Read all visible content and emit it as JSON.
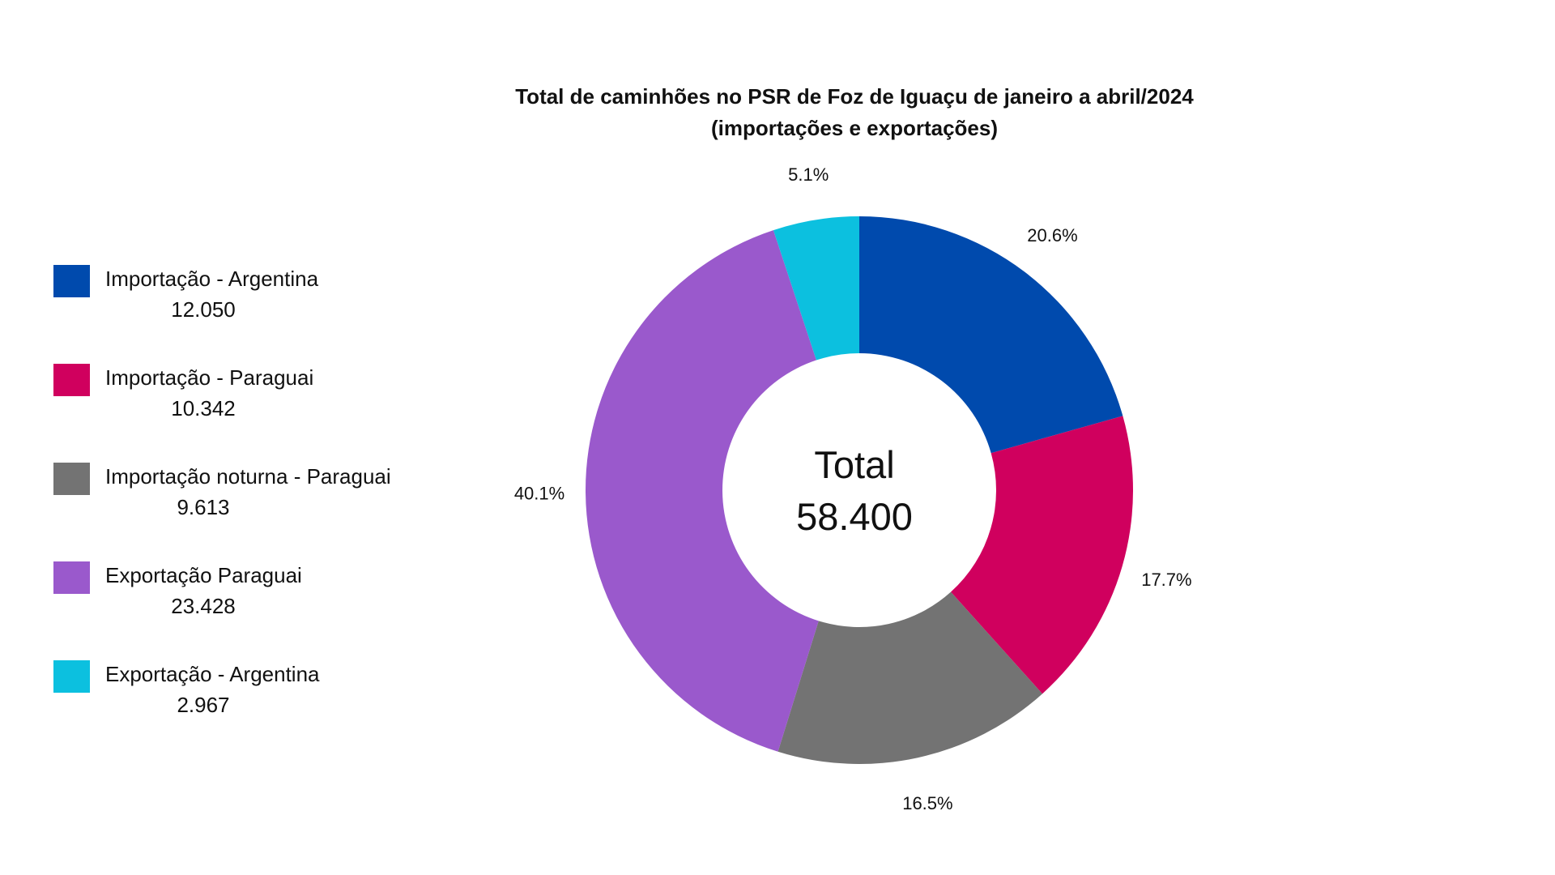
{
  "chart_data": {
    "type": "pie",
    "donut": true,
    "title": "Total de caminhões no PSR de Foz de Iguaçu de janeiro a abril/2024",
    "subtitle": "(importações e exportações)",
    "center_label": "Total",
    "center_value": "58.400",
    "legend_placement": "left",
    "slices": [
      {
        "name": "Importação - Argentina",
        "value": 12050,
        "value_label": "12.050",
        "percent_label": "20.6%",
        "color": "#004AAD"
      },
      {
        "name": "Importação - Paraguai",
        "value": 10342,
        "value_label": "10.342",
        "percent_label": "17.7%",
        "color": "#D0005E"
      },
      {
        "name": "Importação noturna - Paraguai",
        "value": 9613,
        "value_label": "9.613",
        "percent_label": "16.5%",
        "color": "#737373"
      },
      {
        "name": "Exportação Paraguai",
        "value": 23428,
        "value_label": "23.428",
        "percent_label": "40.1%",
        "color": "#9A59CC"
      },
      {
        "name": "Exportação - Argentina",
        "value": 2967,
        "value_label": "2.967",
        "percent_label": "5.1%",
        "color": "#0CC0DF"
      }
    ]
  }
}
